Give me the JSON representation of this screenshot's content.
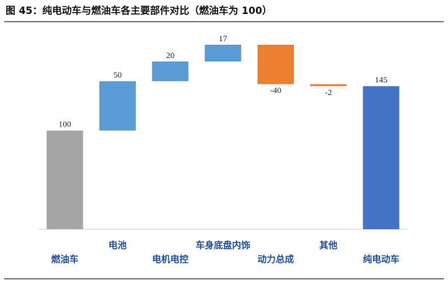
{
  "chart_data": {
    "type": "waterfall",
    "title": "图 45：纯电动车与燃油车各主要部件对比（燃油车为 100）",
    "categories": [
      "燃油车",
      "电池",
      "电机电控",
      "车身底盘内饰",
      "动力总成",
      "其他",
      "纯电动车"
    ],
    "values": [
      100,
      50,
      20,
      17,
      -40,
      -2,
      145
    ],
    "colors": [
      "#a5a5a5",
      "#5b9bd5",
      "#5b9bd5",
      "#5b9bd5",
      "#ed7d31",
      "#ed7d31",
      "#4472c4"
    ]
  }
}
